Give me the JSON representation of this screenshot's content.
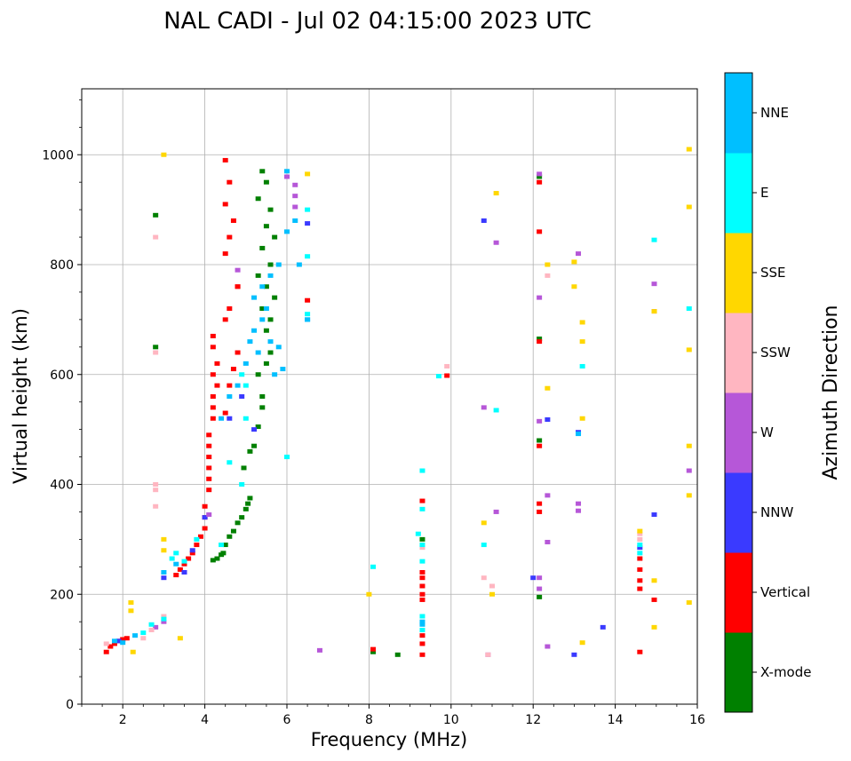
{
  "chart_data": {
    "type": "scatter",
    "title": "NAL CADI - Jul 02 04:15:00 2023 UTC",
    "xlabel": "Frequency (MHz)",
    "ylabel": "Virtual height (km)",
    "xlim": [
      1,
      16
    ],
    "ylim": [
      0,
      1120
    ],
    "xticks": [
      2,
      4,
      6,
      8,
      10,
      12,
      14,
      16
    ],
    "yticks": [
      0,
      200,
      400,
      600,
      800,
      1000
    ],
    "grid": true,
    "colorbar": {
      "title": "Azimuth Direction",
      "categories": [
        {
          "name": "X-mode",
          "color": "#008000"
        },
        {
          "name": "Vertical",
          "color": "#ff0000"
        },
        {
          "name": "NNW",
          "color": "#3a3aff"
        },
        {
          "name": "W",
          "color": "#b657d8"
        },
        {
          "name": "SSW",
          "color": "#ffb6c1"
        },
        {
          "name": "SSE",
          "color": "#ffd700"
        },
        {
          "name": "E",
          "color": "#00ffff"
        },
        {
          "name": "NNE",
          "color": "#00bfff"
        }
      ]
    },
    "series": [
      {
        "name": "X-mode",
        "points": [
          [
            4.2,
            262
          ],
          [
            4.3,
            265
          ],
          [
            4.4,
            272
          ],
          [
            4.45,
            275
          ],
          [
            4.5,
            290
          ],
          [
            4.6,
            305
          ],
          [
            4.7,
            315
          ],
          [
            4.8,
            330
          ],
          [
            4.9,
            340
          ],
          [
            5.0,
            355
          ],
          [
            5.05,
            365
          ],
          [
            5.1,
            375
          ],
          [
            4.95,
            430
          ],
          [
            5.1,
            460
          ],
          [
            5.2,
            470
          ],
          [
            5.3,
            505
          ],
          [
            5.4,
            540
          ],
          [
            5.4,
            560
          ],
          [
            5.3,
            600
          ],
          [
            5.5,
            620
          ],
          [
            5.6,
            640
          ],
          [
            5.5,
            680
          ],
          [
            5.6,
            700
          ],
          [
            5.4,
            720
          ],
          [
            5.7,
            740
          ],
          [
            5.5,
            760
          ],
          [
            5.3,
            780
          ],
          [
            5.6,
            800
          ],
          [
            5.4,
            830
          ],
          [
            5.7,
            850
          ],
          [
            5.5,
            870
          ],
          [
            5.6,
            900
          ],
          [
            5.3,
            920
          ],
          [
            5.5,
            950
          ],
          [
            5.4,
            970
          ],
          [
            2.8,
            890
          ],
          [
            2.8,
            650
          ],
          [
            8.1,
            95
          ],
          [
            8.7,
            90
          ],
          [
            9.3,
            300
          ],
          [
            12.15,
            195
          ],
          [
            12.15,
            480
          ],
          [
            12.15,
            960
          ],
          [
            12.15,
            665
          ]
        ]
      },
      {
        "name": "Vertical",
        "points": [
          [
            1.6,
            95
          ],
          [
            1.7,
            105
          ],
          [
            1.8,
            110
          ],
          [
            1.9,
            115
          ],
          [
            2.0,
            118
          ],
          [
            2.1,
            120
          ],
          [
            3.3,
            235
          ],
          [
            3.4,
            245
          ],
          [
            3.5,
            255
          ],
          [
            3.6,
            265
          ],
          [
            3.7,
            275
          ],
          [
            3.8,
            290
          ],
          [
            3.9,
            305
          ],
          [
            4.0,
            320
          ],
          [
            4.0,
            340
          ],
          [
            4.0,
            360
          ],
          [
            4.1,
            390
          ],
          [
            4.1,
            410
          ],
          [
            4.1,
            430
          ],
          [
            4.1,
            450
          ],
          [
            4.1,
            470
          ],
          [
            4.1,
            490
          ],
          [
            4.2,
            520
          ],
          [
            4.2,
            540
          ],
          [
            4.2,
            560
          ],
          [
            4.3,
            580
          ],
          [
            4.2,
            600
          ],
          [
            4.3,
            620
          ],
          [
            4.2,
            650
          ],
          [
            4.2,
            670
          ],
          [
            4.5,
            530
          ],
          [
            4.6,
            580
          ],
          [
            4.7,
            610
          ],
          [
            4.8,
            640
          ],
          [
            4.5,
            700
          ],
          [
            4.6,
            720
          ],
          [
            4.8,
            760
          ],
          [
            4.5,
            820
          ],
          [
            4.6,
            850
          ],
          [
            4.7,
            880
          ],
          [
            4.5,
            910
          ],
          [
            4.5,
            990
          ],
          [
            4.6,
            950
          ],
          [
            4.8,
            760
          ],
          [
            6.5,
            735
          ],
          [
            8.1,
            100
          ],
          [
            9.3,
            90
          ],
          [
            9.3,
            110
          ],
          [
            9.3,
            125
          ],
          [
            9.3,
            190
          ],
          [
            9.3,
            200
          ],
          [
            9.3,
            215
          ],
          [
            9.3,
            230
          ],
          [
            9.3,
            240
          ],
          [
            9.3,
            370
          ],
          [
            9.9,
            598
          ],
          [
            12.15,
            365
          ],
          [
            12.15,
            350
          ],
          [
            12.15,
            470
          ],
          [
            12.15,
            660
          ],
          [
            12.15,
            860
          ],
          [
            12.15,
            950
          ],
          [
            14.6,
            95
          ],
          [
            14.6,
            210
          ],
          [
            14.6,
            225
          ],
          [
            14.6,
            245
          ],
          [
            14.6,
            265
          ],
          [
            14.95,
            190
          ]
        ]
      },
      {
        "name": "NNW",
        "points": [
          [
            1.9,
            115
          ],
          [
            3.0,
            230
          ],
          [
            3.5,
            240
          ],
          [
            3.7,
            280
          ],
          [
            4.0,
            340
          ],
          [
            4.6,
            520
          ],
          [
            4.9,
            560
          ],
          [
            5.2,
            500
          ],
          [
            6.5,
            875
          ],
          [
            10.8,
            880
          ],
          [
            12.0,
            230
          ],
          [
            12.35,
            518
          ],
          [
            13.1,
            495
          ],
          [
            13.0,
            90
          ],
          [
            13.7,
            140
          ],
          [
            14.6,
            285
          ],
          [
            14.95,
            345
          ]
        ]
      },
      {
        "name": "W",
        "points": [
          [
            2.8,
            140
          ],
          [
            3.0,
            150
          ],
          [
            4.1,
            345
          ],
          [
            4.8,
            790
          ],
          [
            6.2,
            945
          ],
          [
            6.2,
            925
          ],
          [
            6.2,
            905
          ],
          [
            6.0,
            960
          ],
          [
            10.8,
            540
          ],
          [
            11.1,
            350
          ],
          [
            11.1,
            840
          ],
          [
            12.15,
            230
          ],
          [
            12.15,
            210
          ],
          [
            12.15,
            515
          ],
          [
            12.15,
            740
          ],
          [
            12.15,
            965
          ],
          [
            12.35,
            380
          ],
          [
            12.35,
            295
          ],
          [
            12.35,
            105
          ],
          [
            13.1,
            820
          ],
          [
            13.1,
            365
          ],
          [
            13.1,
            352
          ],
          [
            14.95,
            765
          ],
          [
            14.95,
            715
          ],
          [
            15.8,
            425
          ],
          [
            10.9,
            90
          ],
          [
            6.8,
            98
          ]
        ]
      },
      {
        "name": "SSW",
        "points": [
          [
            1.6,
            110
          ],
          [
            2.5,
            120
          ],
          [
            2.7,
            135
          ],
          [
            2.8,
            400
          ],
          [
            2.8,
            390
          ],
          [
            2.8,
            360
          ],
          [
            2.8,
            850
          ],
          [
            2.8,
            640
          ],
          [
            3.0,
            160
          ],
          [
            9.9,
            615
          ],
          [
            10.8,
            230
          ],
          [
            10.9,
            90
          ],
          [
            11.0,
            215
          ],
          [
            12.35,
            780
          ],
          [
            14.6,
            300
          ],
          [
            14.6,
            310
          ],
          [
            9.3,
            285
          ]
        ]
      },
      {
        "name": "SSE",
        "points": [
          [
            2.2,
            185
          ],
          [
            2.2,
            170
          ],
          [
            2.25,
            95
          ],
          [
            3.0,
            300
          ],
          [
            3.0,
            280
          ],
          [
            3.0,
            1000
          ],
          [
            3.4,
            120
          ],
          [
            6.5,
            965
          ],
          [
            8.0,
            200
          ],
          [
            10.8,
            330
          ],
          [
            11.0,
            200
          ],
          [
            11.1,
            930
          ],
          [
            12.35,
            575
          ],
          [
            12.35,
            800
          ],
          [
            13.0,
            805
          ],
          [
            13.0,
            760
          ],
          [
            13.2,
            695
          ],
          [
            13.2,
            660
          ],
          [
            13.2,
            520
          ],
          [
            13.2,
            112
          ],
          [
            14.6,
            315
          ],
          [
            14.95,
            225
          ],
          [
            14.95,
            140
          ],
          [
            14.95,
            715
          ],
          [
            15.8,
            1010
          ],
          [
            15.8,
            905
          ],
          [
            15.8,
            645
          ],
          [
            15.8,
            470
          ],
          [
            15.8,
            380
          ],
          [
            15.8,
            185
          ]
        ]
      },
      {
        "name": "E",
        "points": [
          [
            2.5,
            130
          ],
          [
            2.7,
            145
          ],
          [
            3.0,
            155
          ],
          [
            3.2,
            265
          ],
          [
            3.3,
            275
          ],
          [
            3.5,
            260
          ],
          [
            3.8,
            300
          ],
          [
            4.4,
            290
          ],
          [
            4.9,
            600
          ],
          [
            4.6,
            440
          ],
          [
            5.0,
            520
          ],
          [
            5.0,
            580
          ],
          [
            4.9,
            400
          ],
          [
            6.0,
            450
          ],
          [
            6.5,
            900
          ],
          [
            6.5,
            710
          ],
          [
            6.5,
            815
          ],
          [
            8.1,
            250
          ],
          [
            9.2,
            310
          ],
          [
            9.3,
            425
          ],
          [
            9.3,
            355
          ],
          [
            9.3,
            290
          ],
          [
            9.3,
            260
          ],
          [
            9.3,
            160
          ],
          [
            9.3,
            135
          ],
          [
            9.7,
            597
          ],
          [
            10.8,
            290
          ],
          [
            11.1,
            535
          ],
          [
            13.2,
            615
          ],
          [
            14.6,
            275
          ],
          [
            14.6,
            290
          ],
          [
            14.95,
            845
          ],
          [
            15.8,
            720
          ]
        ]
      },
      {
        "name": "NNE",
        "points": [
          [
            1.8,
            115
          ],
          [
            2.0,
            112
          ],
          [
            2.3,
            125
          ],
          [
            3.0,
            240
          ],
          [
            3.3,
            255
          ],
          [
            4.4,
            520
          ],
          [
            4.6,
            560
          ],
          [
            4.8,
            580
          ],
          [
            5.0,
            620
          ],
          [
            5.1,
            660
          ],
          [
            5.2,
            680
          ],
          [
            5.3,
            640
          ],
          [
            5.4,
            700
          ],
          [
            5.5,
            720
          ],
          [
            5.6,
            660
          ],
          [
            5.7,
            600
          ],
          [
            5.8,
            650
          ],
          [
            5.9,
            610
          ],
          [
            5.2,
            740
          ],
          [
            5.4,
            760
          ],
          [
            5.6,
            780
          ],
          [
            5.8,
            800
          ],
          [
            6.0,
            860
          ],
          [
            6.0,
            970
          ],
          [
            6.2,
            880
          ],
          [
            6.3,
            800
          ],
          [
            6.5,
            700
          ],
          [
            6.5,
            700
          ],
          [
            9.3,
            150
          ],
          [
            9.3,
            145
          ],
          [
            13.1,
            492
          ]
        ]
      }
    ]
  }
}
